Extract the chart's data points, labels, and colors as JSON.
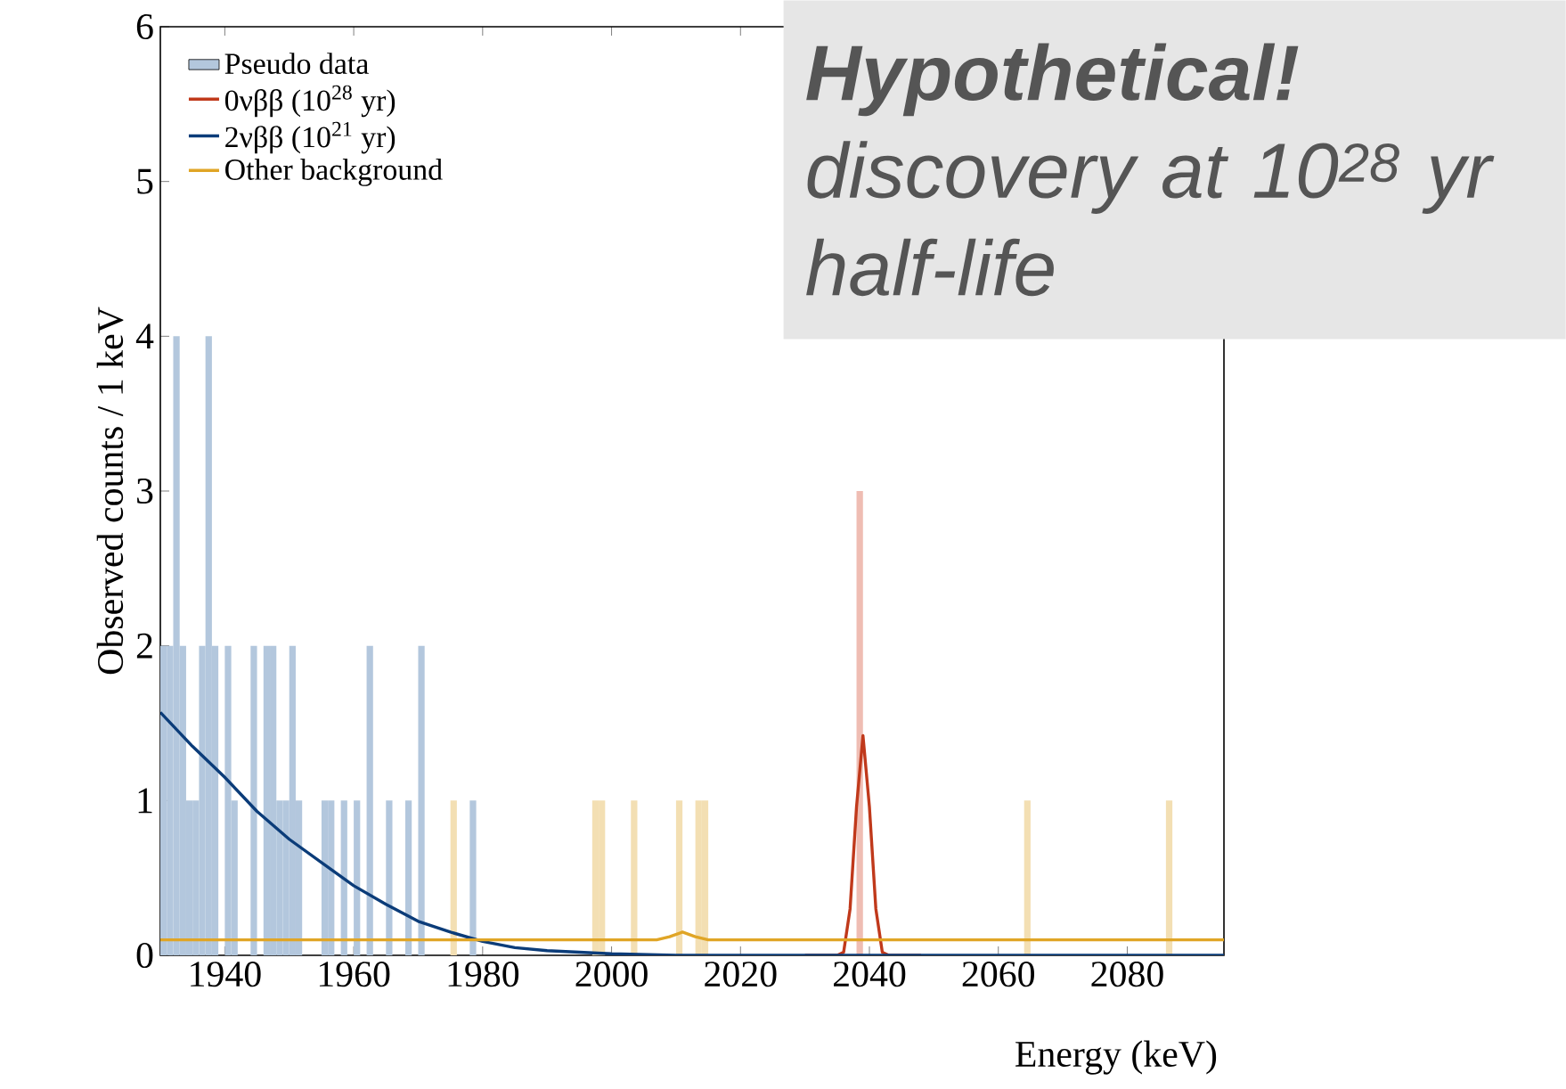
{
  "chart_data": {
    "type": "histogram",
    "xlabel": "Energy (keV)",
    "ylabel": "Observed counts / 1 keV",
    "annotations": [
      "Hypothetical!",
      "discovery at 10$^{28}$ yr half-life"
    ],
    "xlim": [
      1930,
      2095
    ],
    "ylim": [
      0,
      6
    ],
    "xticks": [
      1940,
      1960,
      1980,
      2000,
      2020,
      2040,
      2060,
      2080
    ],
    "yticks": [
      0,
      1,
      2,
      3,
      4,
      5,
      6
    ],
    "legend": "top left",
    "grid": false,
    "bins": [
      1930,
      1931,
      1932,
      1933,
      1934,
      1935,
      1936,
      1937,
      1938,
      1939,
      1940,
      1941,
      1942,
      1943,
      1944,
      1945,
      1946,
      1947,
      1948,
      1949,
      1950,
      1951,
      1952,
      1953,
      1954,
      1955,
      1956,
      1957,
      1958,
      1959,
      1960,
      1961,
      1962,
      1963,
      1964,
      1965,
      1966,
      1967,
      1968,
      1969,
      1970,
      1971,
      1972,
      1973,
      1974,
      1975,
      1976,
      1977,
      1978,
      1979,
      1980,
      1981,
      1982,
      1983,
      1984,
      1985,
      1986,
      1987,
      1988,
      1989,
      1990,
      1991,
      1992,
      1993,
      1994,
      1995,
      1996,
      1997,
      1998,
      1999,
      2000,
      2001,
      2002,
      2003,
      2004,
      2005,
      2006,
      2007,
      2008,
      2009,
      2010,
      2011,
      2012,
      2013,
      2014,
      2015,
      2016,
      2017,
      2018,
      2019,
      2020,
      2021,
      2022,
      2023,
      2024,
      2025,
      2026,
      2027,
      2028,
      2029,
      2030,
      2031,
      2032,
      2033,
      2034,
      2035,
      2036,
      2037,
      2038,
      2039,
      2040,
      2041,
      2042,
      2043,
      2044,
      2045,
      2046,
      2047,
      2048,
      2049,
      2050,
      2051,
      2052,
      2053,
      2054,
      2055,
      2056,
      2057,
      2058,
      2059,
      2060,
      2061,
      2062,
      2063,
      2064,
      2065,
      2066,
      2067,
      2068,
      2069,
      2070,
      2071,
      2072,
      2073,
      2074,
      2075,
      2076,
      2077,
      2078,
      2079,
      2080,
      2081,
      2082,
      2083,
      2084,
      2085,
      2086,
      2087,
      2088,
      2089,
      2090,
      2091,
      2092,
      2093,
      2094,
      2095
    ],
    "series": [
      {
        "name": "Pseudo data",
        "color": "#b3c7dd",
        "values": [
          2,
          2,
          4,
          2,
          1,
          1,
          2,
          4,
          2,
          0,
          2,
          1,
          0,
          0,
          2,
          0,
          2,
          2,
          1,
          1,
          2,
          1,
          0,
          0,
          0,
          1,
          1,
          0,
          1,
          0,
          1,
          0,
          2,
          0,
          0,
          1,
          0,
          0,
          1,
          0,
          2,
          0,
          0,
          0,
          0,
          1,
          0,
          0,
          1,
          0,
          0,
          0,
          0,
          0,
          0,
          0,
          0,
          0,
          0,
          0,
          0,
          0,
          0,
          0,
          0,
          0,
          0,
          1,
          1,
          0,
          0,
          0,
          0,
          1,
          0,
          0,
          0,
          0,
          0,
          0,
          1,
          0,
          0,
          1,
          1,
          0,
          0,
          0,
          0,
          0,
          0,
          0,
          0,
          0,
          0,
          0,
          0,
          0,
          0,
          0,
          0,
          0,
          0,
          0,
          0,
          0,
          0,
          0,
          3,
          0,
          0,
          0,
          0,
          0,
          0,
          0,
          0,
          0,
          0,
          0,
          0,
          0,
          0,
          0,
          0,
          0,
          0,
          0,
          0,
          0,
          0,
          0,
          0,
          0,
          1,
          0,
          0,
          0,
          0,
          0,
          0,
          0,
          0,
          0,
          0,
          0,
          0,
          0,
          0,
          0,
          0,
          0,
          0,
          0,
          0,
          0,
          1,
          0,
          0,
          0,
          0,
          0,
          0,
          0,
          0
        ],
        "colors": [
          "#b3c7dd",
          "#b3c7dd",
          "#b3c7dd",
          "#b3c7dd",
          "#b3c7dd",
          "#b3c7dd",
          "#b3c7dd",
          "#b3c7dd",
          "#b3c7dd",
          "#b3c7dd",
          "#b3c7dd",
          "#b3c7dd",
          "#b3c7dd",
          "#b3c7dd",
          "#b3c7dd",
          "#b3c7dd",
          "#b3c7dd",
          "#b3c7dd",
          "#b3c7dd",
          "#b3c7dd",
          "#b3c7dd",
          "#b3c7dd",
          "#b3c7dd",
          "#b3c7dd",
          "#b3c7dd",
          "#b3c7dd",
          "#b3c7dd",
          "#b3c7dd",
          "#b3c7dd",
          "#b3c7dd",
          "#b3c7dd",
          "#b3c7dd",
          "#b3c7dd",
          "#b3c7dd",
          "#b3c7dd",
          "#b3c7dd",
          "#b3c7dd",
          "#b3c7dd",
          "#b3c7dd",
          "#b3c7dd",
          "#b3c7dd",
          "#b3c7dd",
          "#b3c7dd",
          "#b3c7dd",
          "#b3c7dd",
          "#f3dfb3",
          "#b3c7dd",
          "#b3c7dd",
          "#b3c7dd",
          "#b3c7dd",
          "#b3c7dd",
          "#b3c7dd",
          "#b3c7dd",
          "#b3c7dd",
          "#b3c7dd",
          "#b3c7dd",
          "#b3c7dd",
          "#b3c7dd",
          "#b3c7dd",
          "#b3c7dd",
          "#b3c7dd",
          "#b3c7dd",
          "#b3c7dd",
          "#b3c7dd",
          "#b3c7dd",
          "#b3c7dd",
          "#b3c7dd",
          "#f3dfb3",
          "#f3dfb3",
          "#b3c7dd",
          "#b3c7dd",
          "#b3c7dd",
          "#b3c7dd",
          "#f3dfb3",
          "#b3c7dd",
          "#b3c7dd",
          "#b3c7dd",
          "#b3c7dd",
          "#b3c7dd",
          "#b3c7dd",
          "#f3dfb3",
          "#b3c7dd",
          "#b3c7dd",
          "#f3dfb3",
          "#f3dfb3",
          "#b3c7dd",
          "#b3c7dd",
          "#b3c7dd",
          "#b3c7dd",
          "#b3c7dd",
          "#b3c7dd",
          "#b3c7dd",
          "#b3c7dd",
          "#b3c7dd",
          "#b3c7dd",
          "#b3c7dd",
          "#b3c7dd",
          "#b3c7dd",
          "#b3c7dd",
          "#b3c7dd",
          "#b3c7dd",
          "#b3c7dd",
          "#b3c7dd",
          "#b3c7dd",
          "#b3c7dd",
          "#b3c7dd",
          "#b3c7dd",
          "#b3c7dd",
          "#efbdb3",
          "#b3c7dd",
          "#b3c7dd",
          "#b3c7dd",
          "#b3c7dd",
          "#b3c7dd",
          "#b3c7dd",
          "#b3c7dd",
          "#b3c7dd",
          "#b3c7dd",
          "#b3c7dd",
          "#b3c7dd",
          "#b3c7dd",
          "#b3c7dd",
          "#b3c7dd",
          "#b3c7dd",
          "#b3c7dd",
          "#b3c7dd",
          "#b3c7dd",
          "#b3c7dd",
          "#b3c7dd",
          "#b3c7dd",
          "#b3c7dd",
          "#b3c7dd",
          "#b3c7dd",
          "#b3c7dd",
          "#f3dfb3",
          "#b3c7dd",
          "#b3c7dd",
          "#b3c7dd",
          "#b3c7dd",
          "#b3c7dd",
          "#b3c7dd",
          "#b3c7dd",
          "#b3c7dd",
          "#b3c7dd",
          "#b3c7dd",
          "#b3c7dd",
          "#b3c7dd",
          "#b3c7dd",
          "#b3c7dd",
          "#b3c7dd",
          "#b3c7dd",
          "#b3c7dd",
          "#b3c7dd",
          "#b3c7dd",
          "#b3c7dd",
          "#b3c7dd",
          "#f3dfb3",
          "#b3c7dd",
          "#b3c7dd",
          "#b3c7dd",
          "#b3c7dd",
          "#b3c7dd",
          "#b3c7dd",
          "#b3c7dd",
          "#b3c7dd"
        ]
      },
      {
        "name": "0νββ (10$^{28}$ yr)",
        "type": "line",
        "color": "#c0391b",
        "x": [
          2030,
          2035,
          2036,
          2037,
          2038,
          2039,
          2040,
          2041,
          2042,
          2043,
          2048
        ],
        "values": [
          0,
          0,
          0.02,
          0.3,
          0.96,
          1.42,
          0.96,
          0.3,
          0.02,
          0,
          0
        ]
      },
      {
        "name": "2νββ (10$^{21}$ yr)",
        "type": "line",
        "color": "#0b3c79",
        "x": [
          1930,
          1935,
          1940,
          1945,
          1950,
          1955,
          1960,
          1965,
          1970,
          1975,
          1980,
          1985,
          1990,
          2000,
          2010,
          2095
        ],
        "values": [
          1.57,
          1.35,
          1.15,
          0.93,
          0.75,
          0.6,
          0.45,
          0.33,
          0.22,
          0.15,
          0.09,
          0.05,
          0.03,
          0.01,
          0,
          0
        ]
      },
      {
        "name": "Other background",
        "type": "line",
        "color": "#e0a526",
        "x": [
          1930,
          2007,
          2009,
          2011,
          2013,
          2015,
          2095
        ],
        "values": [
          0.1,
          0.1,
          0.12,
          0.15,
          0.12,
          0.1,
          0.1
        ]
      }
    ]
  }
}
